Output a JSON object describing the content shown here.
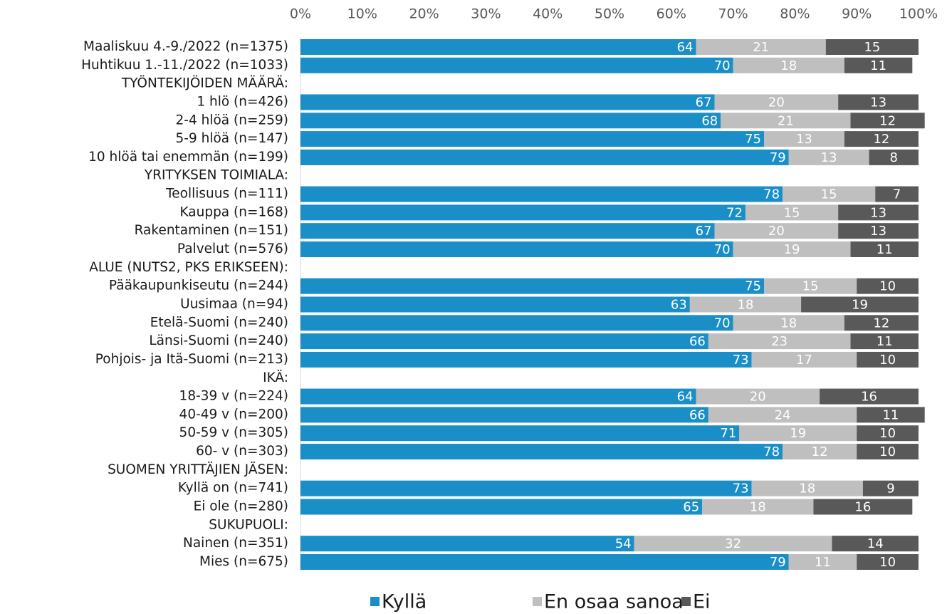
{
  "chart_data": {
    "type": "stacked-bar-horizontal",
    "categories": [
      "Maaliskuu 4.-9./2022 (n=1375)",
      "Huhtikuu 1.-11./2022 (n=1033)",
      "TYÖNTEKIJÖIDEN MÄÄRÄ:",
      "1 hlö (n=426)",
      "2-4 hlöä (n=259)",
      "5-9 hlöä (n=147)",
      "10 hlöä tai enemmän (n=199)",
      "YRITYKSEN TOIMIALA:",
      "Teollisuus (n=111)",
      "Kauppa (n=168)",
      "Rakentaminen (n=151)",
      "Palvelut (n=576)",
      "ALUE (NUTS2, PKS ERIKSEEN):",
      "Pääkaupunkiseutu (n=244)",
      "Uusimaa (n=94)",
      "Etelä-Suomi (n=240)",
      "Länsi-Suomi (n=240)",
      "Pohjois- ja Itä-Suomi (n=213)",
      "IKÄ:",
      "18-39 v (n=224)",
      "40-49 v (n=200)",
      "50-59 v (n=305)",
      "60- v (n=303)",
      "SUOMEN YRITTÄJIEN JÄSEN:",
      "Kyllä on (n=741)",
      "Ei ole (n=280)",
      "SUKUPUOLI:",
      "Nainen (n=351)",
      "Mies (n=675)"
    ],
    "series": [
      {
        "name": "Kyllä",
        "color": "#1a8fc7",
        "values": [
          64,
          70,
          null,
          67,
          68,
          75,
          79,
          null,
          78,
          72,
          67,
          70,
          null,
          75,
          63,
          70,
          66,
          73,
          null,
          64,
          66,
          71,
          78,
          null,
          73,
          65,
          null,
          54,
          79
        ]
      },
      {
        "name": "En osaa sanoa",
        "color": "#bfbfbf",
        "values": [
          21,
          18,
          null,
          20,
          21,
          13,
          13,
          null,
          15,
          15,
          20,
          19,
          null,
          15,
          18,
          18,
          23,
          17,
          null,
          20,
          24,
          19,
          12,
          null,
          18,
          18,
          null,
          32,
          11
        ]
      },
      {
        "name": "Ei",
        "color": "#595959",
        "values": [
          15,
          11,
          null,
          13,
          12,
          12,
          8,
          null,
          7,
          13,
          13,
          11,
          null,
          10,
          19,
          12,
          11,
          10,
          null,
          16,
          11,
          10,
          10,
          null,
          9,
          16,
          null,
          14,
          10
        ]
      }
    ],
    "xlim": [
      0,
      100
    ],
    "xticks": [
      {
        "value": 0,
        "label": "0%"
      },
      {
        "value": 10,
        "label": "10%"
      },
      {
        "value": 20,
        "label": "20%"
      },
      {
        "value": 30,
        "label": "30%"
      },
      {
        "value": 40,
        "label": "40%"
      },
      {
        "value": 50,
        "label": "50%"
      },
      {
        "value": 60,
        "label": "60%"
      },
      {
        "value": 70,
        "label": "70%"
      },
      {
        "value": 80,
        "label": "80%"
      },
      {
        "value": 90,
        "label": "90%"
      },
      {
        "value": 100,
        "label": "100%"
      }
    ],
    "legend": "bottom"
  }
}
